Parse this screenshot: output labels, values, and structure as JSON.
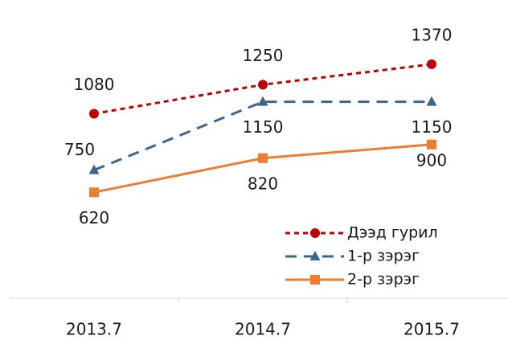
{
  "chart_data": {
    "type": "line",
    "categories": [
      "2013.7",
      "2014.7",
      "2015.7"
    ],
    "series": [
      {
        "name": "Дээд гурил",
        "color": "#c00000",
        "dash": "6,5",
        "marker": "circle",
        "values": [
          1080,
          1250,
          1370
        ]
      },
      {
        "name": "1-р зэрэг",
        "color": "#3d6591",
        "dash": "14,9",
        "marker": "triangle",
        "values": [
          750,
          1150,
          1150
        ]
      },
      {
        "name": "2-р зэрэг",
        "color": "#ed7d31",
        "dash": "none",
        "marker": "square",
        "values": [
          620,
          820,
          900
        ]
      }
    ],
    "ylim": [
      0,
      1600
    ],
    "legend": "lower right"
  }
}
